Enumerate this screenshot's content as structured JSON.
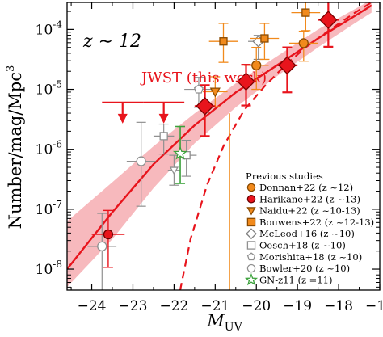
{
  "chart_data": {
    "type": "scatter",
    "x_axis": {
      "label_main": "M",
      "label_sub": "UV",
      "range": [
        -24.6,
        -17.0
      ],
      "ticks": [
        -24,
        -23,
        -22,
        -21,
        -20,
        -19,
        -18,
        -17
      ],
      "tick_labels": [
        "−24",
        "−23",
        "−22",
        "−21",
        "−20",
        "−19",
        "−18",
        "−17"
      ]
    },
    "y_axis": {
      "label": "Number/mag/Mpc",
      "label_sup": "3",
      "scale": "log",
      "range_log10": [
        -8.35,
        -3.55
      ],
      "ticks": [
        -8,
        -7,
        -6,
        -5,
        -4
      ],
      "tick_labels": [
        {
          "base": "10",
          "exp": "-8"
        },
        {
          "base": "10",
          "exp": "-7"
        },
        {
          "base": "10",
          "exp": "-6"
        },
        {
          "base": "10",
          "exp": "-5"
        },
        {
          "base": "10",
          "exp": "-4"
        }
      ]
    },
    "annotations": {
      "redshift_label": "z ∼ 12",
      "fit_label": "JWST (this work)"
    },
    "fit": {
      "color": "#e8141c",
      "band_color": "#f7b9bd",
      "schechter_dashed": [
        [
          -21.85,
          -8.35
        ],
        [
          -21.6,
          -7.5
        ],
        [
          -21.2,
          -6.6
        ],
        [
          -20.8,
          -5.95
        ],
        [
          -20.3,
          -5.35
        ],
        [
          -19.8,
          -4.95
        ],
        [
          -19.3,
          -4.6
        ],
        [
          -18.8,
          -4.3
        ],
        [
          -18.2,
          -4.0
        ],
        [
          -17.6,
          -3.72
        ],
        [
          -17.2,
          -3.55
        ]
      ],
      "dpl_solid": [
        [
          -24.6,
          -8.0
        ],
        [
          -23.5,
          -7.05
        ],
        [
          -22.5,
          -6.25
        ],
        [
          -21.5,
          -5.6
        ],
        [
          -20.5,
          -5.05
        ],
        [
          -19.5,
          -4.6
        ],
        [
          -18.5,
          -4.15
        ],
        [
          -17.5,
          -3.73
        ],
        [
          -17.2,
          -3.6
        ]
      ],
      "band_upper": [
        [
          -24.6,
          -7.2
        ],
        [
          -23.5,
          -6.55
        ],
        [
          -22.5,
          -5.95
        ],
        [
          -21.5,
          -5.4
        ],
        [
          -20.5,
          -4.9
        ],
        [
          -19.5,
          -4.45
        ],
        [
          -18.5,
          -4.0
        ],
        [
          -17.5,
          -3.62
        ],
        [
          -17.2,
          -3.5
        ]
      ],
      "band_lower": [
        [
          -24.6,
          -8.3
        ],
        [
          -23.5,
          -7.5
        ],
        [
          -22.5,
          -6.65
        ],
        [
          -21.5,
          -5.9
        ],
        [
          -20.5,
          -5.3
        ],
        [
          -19.5,
          -4.78
        ],
        [
          -18.5,
          -4.3
        ],
        [
          -17.5,
          -3.85
        ],
        [
          -17.2,
          -3.72
        ]
      ]
    },
    "this_work": {
      "color": "#e8141c",
      "points": [
        {
          "x": -21.25,
          "y": -5.28,
          "xerr": 0.25,
          "yerr_hi": 0.35,
          "yerr_lo": 0.5
        },
        {
          "x": -20.25,
          "y": -4.87,
          "xerr": 0.25,
          "yerr_hi": 0.28,
          "yerr_lo": 0.4
        },
        {
          "x": -19.25,
          "y": -4.6,
          "xerr": 0.25,
          "yerr_hi": 0.3,
          "yerr_lo": 0.45
        },
        {
          "x": -18.25,
          "y": -3.84,
          "xerr": 0.25,
          "yerr_hi": 0.3,
          "yerr_lo": 0.45
        }
      ],
      "upper_limits": [
        {
          "x": -23.25,
          "y": -5.22,
          "xerr": 0.5
        },
        {
          "x": -22.25,
          "y": -5.22,
          "xerr": 0.5
        }
      ]
    },
    "previous": {
      "donnan22": {
        "color": "#f18a1c",
        "points": [
          {
            "x": -20.0,
            "y": -4.6,
            "xerr": 0.3,
            "yerr_hi": 0.3,
            "yerr_lo": 0.4
          },
          {
            "x": -18.85,
            "y": -4.23,
            "xerr": 0.35,
            "yerr_hi": 0.2,
            "yerr_lo": 0.3
          }
        ]
      },
      "harikane22": {
        "color": "#e8141c",
        "points": [
          {
            "x": -23.6,
            "y": -7.42,
            "xerr": 0.4,
            "yerr_hi": 0.4,
            "yerr_lo": 0.55
          }
        ]
      },
      "naidu22": {
        "color": "#f18a1c",
        "points": [
          {
            "x": -21.0,
            "y": -5.04,
            "xerr": 0.3,
            "yerr_hi": 0.25,
            "yerr_lo": 0.25
          }
        ]
      },
      "bouwens22": {
        "color": "#f18a1c",
        "points": [
          {
            "x": -20.8,
            "y": -4.2,
            "xerr": 0.35,
            "yerr_hi": 0.3,
            "yerr_lo": 0.35
          },
          {
            "x": -19.8,
            "y": -4.15,
            "xerr": 0.35,
            "yerr_hi": 0.25,
            "yerr_lo": 0.35
          },
          {
            "x": -18.8,
            "y": -3.72,
            "xerr": 0.35,
            "yerr_hi": 0.25,
            "yerr_lo": 0.3
          }
        ]
      },
      "mcleod16": {
        "color": "#808080",
        "points": [
          {
            "x": -19.95,
            "y": -4.2,
            "xerr": 0.25,
            "yerr_hi": 0.1,
            "yerr_lo": 0.3
          }
        ]
      },
      "oesch18": {
        "color": "#909090",
        "points": [
          {
            "x": -22.25,
            "y": -5.78,
            "xerr": 0.25,
            "yerr_hi": 0.2,
            "yerr_lo": 0.3
          },
          {
            "x": -21.7,
            "y": -6.1,
            "xerr": 0.25,
            "yerr_hi": 0.25,
            "yerr_lo": 0.35
          }
        ]
      },
      "morishita18": {
        "color": "#909090",
        "points": [
          {
            "x": -21.4,
            "y": -5.0,
            "xerr": 0.35,
            "yerr_hi": 0.2,
            "yerr_lo": 0.3
          }
        ]
      },
      "bowler20": {
        "color": "#909090",
        "points": [
          {
            "x": -22.8,
            "y": -6.2,
            "xerr": 0.35,
            "yerr_hi": 0.65,
            "yerr_lo": 0.75
          },
          {
            "x": -23.75,
            "y": -7.62,
            "xerr": 0.35,
            "yerr_hi": 0.55,
            "yerr_lo": 0.8
          }
        ]
      },
      "naidu_open": {
        "color": "#909090",
        "points": [
          {
            "x": -22.0,
            "y": -6.35,
            "xerr": 0.15,
            "yerr_hi": 0.25,
            "yerr_lo": 0.25
          }
        ]
      },
      "gnz11": {
        "color": "#3aa13a",
        "points": [
          {
            "x": -21.85,
            "y": -6.07,
            "xerr": 0.0,
            "yerr_hi": 0.45,
            "yerr_lo": 0.5
          }
        ]
      },
      "orange_upper_line": {
        "color": "#f18a1c",
        "x": -20.65,
        "y_top": -5.4,
        "y_bottom": -8.35
      }
    },
    "legend": {
      "title": "Previous studies",
      "placement": "lower-right",
      "entries": [
        {
          "marker": "circle",
          "filled": true,
          "color": "#f18a1c",
          "label": "Donnan+22 (z ~12)"
        },
        {
          "marker": "circle",
          "filled": true,
          "color": "#e8141c",
          "label": "Harikane+22 (z ~13)"
        },
        {
          "marker": "triangle-down",
          "filled": true,
          "color": "#f18a1c",
          "label": "Naidu+22 (z ~10-13)"
        },
        {
          "marker": "square",
          "filled": true,
          "color": "#f18a1c",
          "label": "Bouwens+22 (z ~12-13)"
        },
        {
          "marker": "diamond",
          "filled": false,
          "color": "#808080",
          "label": "McLeod+16 (z ~10)"
        },
        {
          "marker": "square",
          "filled": false,
          "color": "#909090",
          "label": "Oesch+18 (z ~10)"
        },
        {
          "marker": "pentagon",
          "filled": false,
          "color": "#909090",
          "label": "Morishita+18 (z ~10)"
        },
        {
          "marker": "circle",
          "filled": false,
          "color": "#909090",
          "label": "Bowler+20 (z ~10)"
        },
        {
          "marker": "star",
          "filled": false,
          "color": "#3aa13a",
          "label": "GN-z11 (z =11)"
        }
      ]
    }
  }
}
